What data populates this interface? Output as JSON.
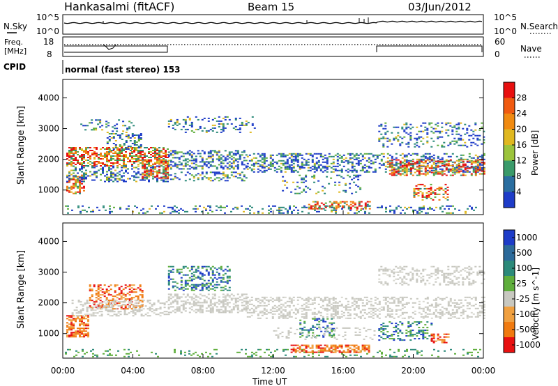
{
  "header": {
    "station": "Hankasalmi (fitACF)",
    "beam": "Beam 15",
    "date": "03/Jun/2012"
  },
  "noise_panel": {
    "left_label": "N.Sky",
    "right_label": "N.Search",
    "top_tick": "10^5",
    "bottom_tick": "10^0",
    "right_top_tick": "10^5",
    "right_bottom_tick": "10^0"
  },
  "freq_panel": {
    "left_label_1": "Freq.",
    "left_label_2": "[MHz]",
    "right_label": "Nave",
    "left_top_tick": "18",
    "left_bottom_tick": "8",
    "right_top_tick": "60",
    "right_bottom_tick": "0"
  },
  "cpid_panel": {
    "label": "CPID",
    "mode_text": "normal (fast stereo) 153"
  },
  "x_axis": {
    "ticks": [
      "00:00",
      "04:00",
      "08:00",
      "12:00",
      "16:00",
      "20:00",
      "00:00"
    ],
    "label": "Time UT"
  },
  "colors": {
    "blue": "#1e3cc8",
    "teal": "#2c8a7a",
    "green": "#5fae3c",
    "yellow": "#e0b820",
    "orange": "#f07a10",
    "red": "#e81010",
    "grey": "#c8c8c0"
  },
  "chart_data": [
    {
      "type": "heatmap",
      "name": "power",
      "ylabel": "Slant Range [km]",
      "y_ticks": [
        "1000",
        "2000",
        "3000",
        "4000"
      ],
      "ylim": [
        200,
        4600
      ],
      "xlim": [
        0,
        24
      ],
      "colorbar_label": "Power [dB]",
      "colorbar_ticks": [
        "28",
        "24",
        "20",
        "16",
        "12",
        "8",
        "4"
      ],
      "colorbar_colors": [
        "#e81010",
        "#f05a10",
        "#f08a10",
        "#e0b820",
        "#9cc43c",
        "#3a9a6a",
        "#2a6ea0",
        "#1e3cc8"
      ],
      "bands": [
        {
          "x": [
            0.2,
            6.0
          ],
          "y": [
            1000,
            2300
          ],
          "level": "high"
        },
        {
          "x": [
            6.0,
            10.5
          ],
          "y": [
            1700,
            2300
          ],
          "level": "mid"
        },
        {
          "x": [
            12.5,
            24.0
          ],
          "y": [
            1500,
            2200
          ],
          "level": "mid"
        },
        {
          "x": [
            14.0,
            17.5
          ],
          "y": [
            400,
            600
          ],
          "level": "high"
        },
        {
          "x": [
            20.0,
            22.0
          ],
          "y": [
            700,
            1200
          ],
          "level": "high"
        }
      ]
    },
    {
      "type": "heatmap",
      "name": "velocity",
      "ylabel": "Slant Range [km]",
      "y_ticks": [
        "1000",
        "2000",
        "3000",
        "4000"
      ],
      "ylim": [
        200,
        4600
      ],
      "xlim": [
        0,
        24
      ],
      "colorbar_label": "Velocity [m s^-1]",
      "colorbar_ticks": [
        "1000",
        "500",
        "100",
        "25",
        "-25",
        "-100",
        "-500",
        "-1000"
      ],
      "colorbar_colors": [
        "#1e3cc8",
        "#2c6a9a",
        "#2c8a7a",
        "#5fae3c",
        "#c8c8c0",
        "#f0a040",
        "#f07a10",
        "#e81010"
      ]
    }
  ]
}
